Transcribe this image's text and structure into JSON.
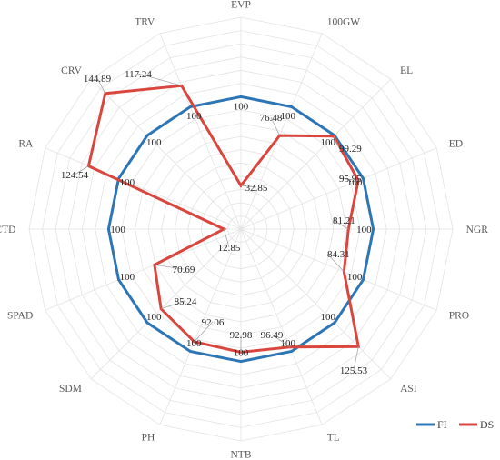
{
  "chart_data": {
    "type": "radar",
    "categories": [
      "EVP",
      "100GW",
      "EL",
      "ED",
      "NGR",
      "PRO",
      "ASI",
      "TL",
      "NTB",
      "PH",
      "SDM",
      "SPAD",
      "CTD",
      "RA",
      "CRV",
      "TRV"
    ],
    "series": [
      {
        "name": "FI",
        "color": "#2e75b6",
        "values": [
          100,
          100,
          100,
          100,
          100,
          100,
          100,
          100,
          100,
          100,
          100,
          100,
          100,
          100,
          100,
          100
        ],
        "labels": [
          "100",
          "100",
          "100",
          "100",
          "100",
          "100",
          "100",
          "100",
          "100",
          "100",
          "100",
          "100",
          "100",
          "100",
          "100",
          "100"
        ]
      },
      {
        "name": "DS",
        "color": "#d9463e",
        "values": [
          32.85,
          76.48,
          99.29,
          95.95,
          81.21,
          84.31,
          125.53,
          96.49,
          92.98,
          92.06,
          85.24,
          70.69,
          12.85,
          124.54,
          144.89,
          117.24
        ],
        "labels": [
          "32.85",
          "76.48",
          "99.29",
          "95.95",
          "81.21",
          "84.31",
          "125.53",
          "96.49",
          "92.98",
          "92.06",
          "85.24",
          "70.69",
          "12.85",
          "124.54",
          "144.89",
          "117.24"
        ]
      }
    ],
    "rmax": 160,
    "grid_step": 10,
    "grid": true,
    "legend_position": "bottom-right"
  }
}
